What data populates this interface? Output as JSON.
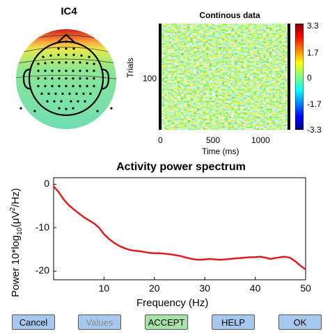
{
  "topoplot": {
    "title": "IC4"
  },
  "erpimage": {
    "title": "Continous data",
    "ylabel": "Trials",
    "yticks": [
      "100"
    ],
    "xticks": [
      "0",
      "500",
      "1000"
    ],
    "xlabel": "Time (ms)",
    "colorbar_ticks": [
      "3.3",
      "1.7",
      "0",
      "-1.7",
      "-3.3"
    ]
  },
  "spectrum": {
    "title": "Activity power spectrum",
    "xlabel": "Frequency (Hz)",
    "ylabel_prefix": "Power 10*log",
    "ylabel_sub": "10",
    "ylabel_mid": "(μV",
    "ylabel_sup": "2",
    "ylabel_suffix": "/Hz)",
    "xticks": [
      "10",
      "20",
      "30",
      "40",
      "50"
    ],
    "yticks": [
      "0",
      "-10",
      "-20"
    ]
  },
  "chart_data": {
    "type": "line",
    "title": "Activity power spectrum",
    "xlabel": "Frequency (Hz)",
    "ylabel": "Power 10*log10(μV2/Hz)",
    "xlim": [
      0,
      50
    ],
    "ylim": [
      -22,
      1.5
    ],
    "color": "#e31a1c",
    "x": [
      0,
      1,
      2,
      3,
      4,
      5,
      6,
      7,
      8,
      9,
      10,
      11,
      12,
      13,
      14,
      15,
      16,
      17,
      18,
      19,
      20,
      21,
      22,
      23,
      24,
      25,
      26,
      27,
      28,
      29,
      30,
      31,
      32,
      33,
      34,
      35,
      36,
      37,
      38,
      39,
      40,
      41,
      42,
      43,
      44,
      45,
      46,
      47,
      48,
      49,
      50
    ],
    "y": [
      -0.5,
      -1.8,
      -3.5,
      -4.8,
      -5.8,
      -6.7,
      -7.6,
      -8.3,
      -9.0,
      -10.0,
      -11.5,
      -12.6,
      -13.5,
      -14.2,
      -14.7,
      -15.1,
      -15.3,
      -15.4,
      -15.6,
      -15.8,
      -15.9,
      -15.9,
      -16.0,
      -16.1,
      -16.3,
      -16.5,
      -16.8,
      -17.1,
      -17.3,
      -17.4,
      -17.3,
      -17.2,
      -17.3,
      -17.4,
      -17.3,
      -17.2,
      -17.1,
      -17.0,
      -16.9,
      -16.8,
      -16.8,
      -16.7,
      -16.9,
      -17.2,
      -17.0,
      -16.8,
      -16.7,
      -17.0,
      -17.8,
      -18.8,
      -19.6
    ]
  },
  "buttons": {
    "cancel": "Cancel",
    "values": "Values",
    "accept": "ACCEPT",
    "help": "HELP",
    "ok": "OK"
  },
  "colors": {
    "button_blue": "#a6c8ef",
    "button_green": "#a6e3a6",
    "disabled_text": "#8c8c8c",
    "line": "#e31a1c"
  }
}
